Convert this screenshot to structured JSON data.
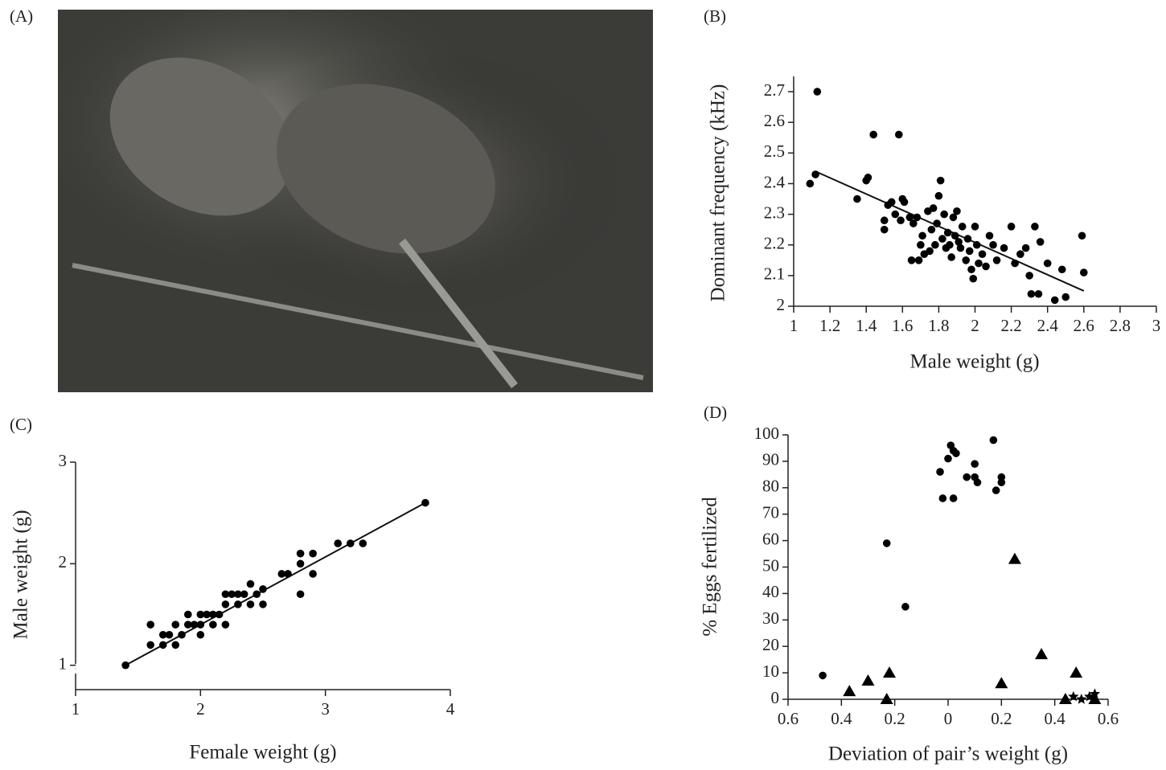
{
  "photo_panel": {
    "label": "(A)"
  },
  "chart_data": [
    {
      "type": "scatter",
      "panel_label": "(B)",
      "x_label": "Male weight (g)",
      "y_label": "Dominant frequency (kHz)",
      "xlim": [
        1,
        3
      ],
      "ylim": [
        2,
        2.75
      ],
      "xticks": [
        1,
        1.2,
        1.4,
        1.6,
        1.8,
        2,
        2.2,
        2.4,
        2.6,
        2.8,
        3
      ],
      "yticks": [
        2,
        2.1,
        2.2,
        2.3,
        2.4,
        2.5,
        2.6,
        2.7
      ],
      "series": [
        {
          "marker": "circle",
          "color": "#000000",
          "x": [
            1.09,
            1.12,
            1.13,
            1.35,
            1.4,
            1.41,
            1.44,
            1.5,
            1.5,
            1.52,
            1.54,
            1.56,
            1.58,
            1.59,
            1.6,
            1.61,
            1.64,
            1.65,
            1.66,
            1.68,
            1.69,
            1.7,
            1.71,
            1.72,
            1.74,
            1.75,
            1.76,
            1.77,
            1.78,
            1.79,
            1.8,
            1.81,
            1.82,
            1.83,
            1.84,
            1.85,
            1.86,
            1.87,
            1.88,
            1.89,
            1.9,
            1.91,
            1.92,
            1.93,
            1.95,
            1.96,
            1.97,
            1.98,
            1.99,
            2.0,
            2.01,
            2.02,
            2.04,
            2.06,
            2.08,
            2.1,
            2.12,
            2.16,
            2.2,
            2.22,
            2.25,
            2.28,
            2.3,
            2.31,
            2.33,
            2.35,
            2.36,
            2.4,
            2.44,
            2.48,
            2.5,
            2.59,
            2.6
          ],
          "y": [
            2.4,
            2.43,
            2.7,
            2.35,
            2.41,
            2.42,
            2.56,
            2.25,
            2.28,
            2.33,
            2.34,
            2.3,
            2.56,
            2.28,
            2.35,
            2.34,
            2.29,
            2.15,
            2.27,
            2.29,
            2.15,
            2.2,
            2.23,
            2.17,
            2.31,
            2.18,
            2.25,
            2.32,
            2.2,
            2.27,
            2.36,
            2.41,
            2.22,
            2.3,
            2.19,
            2.24,
            2.2,
            2.16,
            2.29,
            2.23,
            2.31,
            2.21,
            2.19,
            2.26,
            2.15,
            2.22,
            2.18,
            2.12,
            2.09,
            2.26,
            2.2,
            2.14,
            2.17,
            2.13,
            2.23,
            2.2,
            2.15,
            2.19,
            2.26,
            2.14,
            2.17,
            2.19,
            2.1,
            2.04,
            2.26,
            2.04,
            2.21,
            2.14,
            2.02,
            2.12,
            2.03,
            2.23,
            2.11
          ]
        }
      ],
      "fit_line": {
        "x": [
          1.12,
          2.6
        ],
        "y": [
          2.44,
          2.05
        ]
      }
    },
    {
      "type": "scatter",
      "panel_label": "(C)",
      "x_label": "Female weight (g)",
      "y_label": "Male weight (g)",
      "xlim": [
        1,
        4
      ],
      "ylim": [
        0.76,
        3
      ],
      "xticks": [
        1,
        2,
        3,
        4
      ],
      "yticks": [
        1,
        2,
        3
      ],
      "series": [
        {
          "marker": "circle",
          "color": "#000000",
          "x": [
            1.4,
            1.6,
            1.6,
            1.7,
            1.7,
            1.75,
            1.8,
            1.8,
            1.85,
            1.9,
            1.9,
            1.95,
            2.0,
            2.0,
            2.0,
            2.05,
            2.1,
            2.1,
            2.15,
            2.2,
            2.2,
            2.2,
            2.25,
            2.3,
            2.3,
            2.35,
            2.4,
            2.4,
            2.45,
            2.5,
            2.5,
            2.65,
            2.7,
            2.8,
            2.8,
            2.8,
            2.9,
            2.9,
            3.1,
            3.2,
            3.3,
            3.8
          ],
          "y": [
            1.0,
            1.2,
            1.4,
            1.3,
            1.2,
            1.3,
            1.2,
            1.4,
            1.3,
            1.4,
            1.5,
            1.4,
            1.3,
            1.5,
            1.4,
            1.5,
            1.4,
            1.5,
            1.5,
            1.4,
            1.6,
            1.7,
            1.7,
            1.6,
            1.7,
            1.7,
            1.6,
            1.8,
            1.7,
            1.6,
            1.75,
            1.9,
            1.9,
            1.7,
            2.0,
            2.1,
            1.9,
            2.1,
            2.2,
            2.2,
            2.2,
            2.6
          ]
        }
      ],
      "fit_line": {
        "x": [
          1.4,
          3.8
        ],
        "y": [
          1.0,
          2.6
        ]
      }
    },
    {
      "type": "scatter",
      "panel_label": "(D)",
      "x_label": "Deviation of pair’s weight (g)",
      "y_label": "% Eggs fertilized",
      "xlim": [
        -0.6,
        0.6
      ],
      "ylim": [
        0,
        100
      ],
      "xticks": [
        {
          "value": -0.6,
          "label": "0.6"
        },
        {
          "value": -0.4,
          "label": "0.4"
        },
        {
          "value": -0.2,
          "label": "0.2"
        },
        0,
        0.2,
        0.4,
        0.6
      ],
      "yticks": [
        0,
        10,
        20,
        30,
        40,
        50,
        60,
        70,
        80,
        90,
        100
      ],
      "series": [
        {
          "marker": "circle",
          "color": "#000000",
          "x": [
            -0.47,
            -0.23,
            -0.16,
            -0.03,
            -0.02,
            0,
            0.01,
            0.02,
            0.02,
            0.03,
            0.07,
            0.1,
            0.1,
            0.11,
            0.17,
            0.18,
            0.2,
            0.2
          ],
          "y": [
            9,
            59,
            35,
            86,
            76,
            91,
            96,
            76,
            94,
            93,
            84,
            89,
            84,
            82,
            98,
            79,
            82,
            84
          ]
        },
        {
          "marker": "triangle",
          "color": "#000000",
          "x": [
            -0.37,
            -0.3,
            -0.22,
            -0.23,
            0.2,
            0.25,
            0.35,
            0.48,
            0.44,
            0.55
          ],
          "y": [
            3,
            7,
            10,
            0,
            6,
            53,
            17,
            10,
            0,
            0
          ]
        },
        {
          "marker": "star",
          "color": "#000000",
          "x": [
            0.47,
            0.5,
            0.53,
            0.55
          ],
          "y": [
            1,
            0,
            1,
            2
          ]
        }
      ]
    }
  ]
}
